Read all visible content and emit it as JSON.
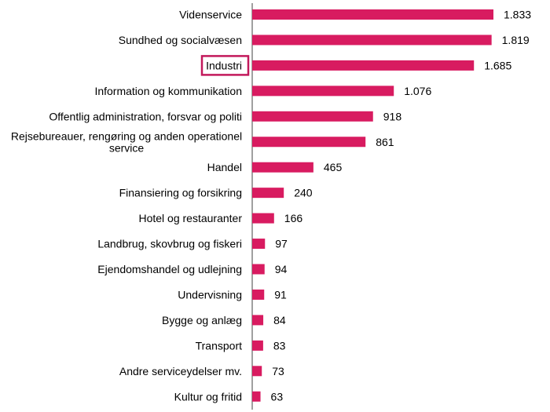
{
  "chart_data": {
    "type": "bar",
    "orientation": "horizontal",
    "title": "",
    "xlabel": "",
    "ylabel": "",
    "grid": false,
    "categories": [
      "Videnservice",
      "Sundhed og socialvæsen",
      "Industri",
      "Information og kommunikation",
      "Offentlig administration, forsvar og politi",
      "Rejsebureauer, rengøring og anden operationel service",
      "Handel",
      "Finansiering og forsikring",
      "Hotel og restauranter",
      "Landbrug, skovbrug og fiskeri",
      "Ejendomshandel og udlejning",
      "Undervisning",
      "Bygge og anlæg",
      "Transport",
      "Andre serviceydelser  mv.",
      "Kultur og fritid"
    ],
    "label_lines": [
      [
        "Videnservice"
      ],
      [
        "Sundhed og socialvæsen"
      ],
      [
        "Industri"
      ],
      [
        "Information og kommunikation"
      ],
      [
        "Offentlig administration, forsvar og politi"
      ],
      [
        "Rejsebureauer, rengøring og anden operationel",
        "service"
      ],
      [
        "Handel"
      ],
      [
        "Finansiering og forsikring"
      ],
      [
        "Hotel og restauranter"
      ],
      [
        "Landbrug, skovbrug og fiskeri"
      ],
      [
        "Ejendomshandel og udlejning"
      ],
      [
        "Undervisning"
      ],
      [
        "Bygge og anlæg"
      ],
      [
        "Transport"
      ],
      [
        "Andre serviceydelser  mv."
      ],
      [
        "Kultur og fritid"
      ]
    ],
    "values": [
      1833,
      1819,
      1685,
      1076,
      918,
      861,
      465,
      240,
      166,
      97,
      94,
      91,
      84,
      83,
      73,
      63
    ],
    "value_labels": [
      "1.833",
      "1.819",
      "1.685",
      "1.076",
      "918",
      "861",
      "465",
      "240",
      "166",
      "97",
      "94",
      "91",
      "84",
      "83",
      "73",
      "63"
    ],
    "xlim": [
      0,
      1900
    ],
    "highlighted_category": "Industri"
  },
  "colors": {
    "bar": "#d81b60",
    "highlight_border": "#c2185b",
    "axis": "#808080"
  }
}
